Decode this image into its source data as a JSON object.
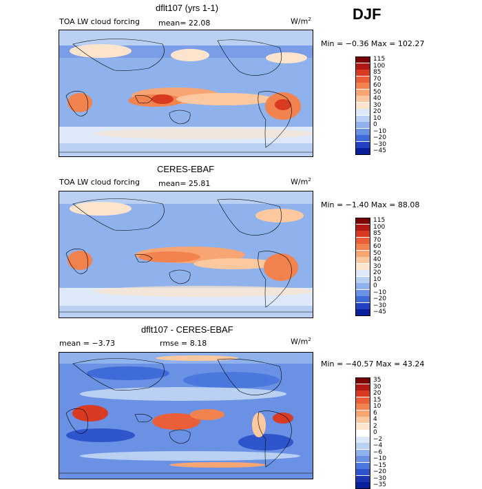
{
  "season": "DJF",
  "chart_data": [
    {
      "type": "heatmap",
      "title": "dflt107 (yrs 1-1)",
      "variable": "TOA LW cloud forcing",
      "mean_text": "mean=  22.08",
      "units_base": "W/m",
      "units_exp": "2",
      "minmax_text": "Min =  −0.36 Max = 102.27",
      "mean": 22.08,
      "min": -0.36,
      "max": 102.27,
      "colorbar_labels": [
        "115",
        "100",
        "85",
        "70",
        "60",
        "50",
        "40",
        "30",
        "20",
        "10",
        "0",
        "−10",
        "−20",
        "−30",
        "−45"
      ],
      "colorbar_colors": [
        "#7a0403",
        "#b01a14",
        "#d83a22",
        "#ea5f37",
        "#f2834f",
        "#f7a673",
        "#fbc8a0",
        "#fde4cc",
        "#dde8f8",
        "#b9d0f3",
        "#8fb1ec",
        "#6a91e4",
        "#3f6bd8",
        "#2141c2",
        "#0a1f9a"
      ]
    },
    {
      "type": "heatmap",
      "title": "CERES-EBAF",
      "variable": "TOA LW cloud forcing",
      "mean_text": "mean=  25.81",
      "units_base": "W/m",
      "units_exp": "2",
      "minmax_text": "Min =  −1.40 Max =  88.08",
      "mean": 25.81,
      "min": -1.4,
      "max": 88.08,
      "colorbar_labels": [
        "115",
        "100",
        "85",
        "70",
        "60",
        "50",
        "40",
        "30",
        "20",
        "10",
        "0",
        "−10",
        "−20",
        "−30",
        "−45"
      ],
      "colorbar_colors": [
        "#7a0403",
        "#b01a14",
        "#d83a22",
        "#ea5f37",
        "#f2834f",
        "#f7a673",
        "#fbc8a0",
        "#fde4cc",
        "#dde8f8",
        "#b9d0f3",
        "#8fb1ec",
        "#6a91e4",
        "#3f6bd8",
        "#2141c2",
        "#0a1f9a"
      ]
    },
    {
      "type": "heatmap",
      "title": "dflt107 - CERES-EBAF",
      "mean_text": "mean =   −3.73",
      "rmse_text": "rmse =   8.18",
      "units_base": "W/m",
      "units_exp": "2",
      "minmax_text": "Min = −40.57 Max =  43.24",
      "mean": -3.73,
      "rmse": 8.18,
      "min": -40.57,
      "max": 43.24,
      "colorbar_labels": [
        "35",
        "30",
        "20",
        "15",
        "10",
        "6",
        "4",
        "2",
        "0",
        "−2",
        "−4",
        "−6",
        "−10",
        "−15",
        "−20",
        "−30",
        "−35"
      ],
      "colorbar_colors": [
        "#7a0403",
        "#b01a14",
        "#d83a22",
        "#ea5f37",
        "#f2834f",
        "#f7a673",
        "#fbc8a0",
        "#fde4cc",
        "#ffffff",
        "#dde8f8",
        "#b9d0f3",
        "#8fb1ec",
        "#6a91e4",
        "#4a78dc",
        "#2f55cc",
        "#1a35b0",
        "#0a1f9a"
      ]
    }
  ]
}
